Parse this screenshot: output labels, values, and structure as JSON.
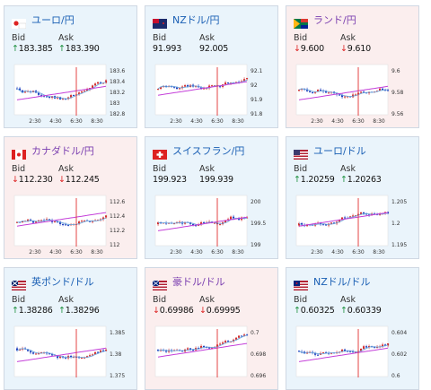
{
  "labels": {
    "bid": "Bid",
    "ask": "Ask"
  },
  "cards": [
    {
      "pair": "ユーロ/円",
      "flag": "eu-jp-flag",
      "trend": "up",
      "bid": "183.385",
      "ask": "183.390",
      "y_ticks": [
        "183.6",
        "183.4",
        "183.2",
        "183",
        "182.8"
      ],
      "x_ticks": [
        "2:30",
        "4:30",
        "6:30",
        "8:30"
      ]
    },
    {
      "pair": "NZドル/円",
      "flag": "nz-jp-flag",
      "trend": "up",
      "bid": "91.993",
      "ask": "92.005",
      "y_ticks": [
        "92.1",
        "92",
        "91.9",
        "91.8"
      ],
      "x_ticks": [
        "2:30",
        "4:30",
        "6:30",
        "8:30"
      ]
    },
    {
      "pair": "ランド/円",
      "flag": "za-jp-flag",
      "trend": "down",
      "bid": "9.600",
      "ask": "9.610",
      "y_ticks": [
        "9.6",
        "9.58",
        "9.56"
      ],
      "x_ticks": [
        "2:30",
        "4:30",
        "6:30",
        "8:30"
      ]
    },
    {
      "pair": "カナダドル/円",
      "flag": "ca-jp-flag",
      "trend": "down",
      "bid": "112.230",
      "ask": "112.245",
      "y_ticks": [
        "112.6",
        "112.4",
        "112.2",
        "112"
      ],
      "x_ticks": [
        "2:30",
        "4:30",
        "6:30",
        "8:30"
      ]
    },
    {
      "pair": "スイスフラン/円",
      "flag": "ch-jp-flag",
      "trend": "up",
      "bid": "199.923",
      "ask": "199.939",
      "y_ticks": [
        "200",
        "199.5",
        "199"
      ],
      "x_ticks": [
        "2:30",
        "4:30",
        "6:30",
        "8:30"
      ]
    },
    {
      "pair": "ユーロ/ドル",
      "flag": "eu-us-flag",
      "trend": "up",
      "bid": "1.20259",
      "ask": "1.20263",
      "y_ticks": [
        "1.205",
        "1.2",
        "1.195"
      ],
      "x_ticks": [
        "2:30",
        "4:30",
        "6:30",
        "8:30"
      ]
    },
    {
      "pair": "英ポンド/ドル",
      "flag": "gb-us-flag",
      "trend": "up",
      "bid": "1.38286",
      "ask": "1.38296",
      "y_ticks": [
        "1.385",
        "1.38",
        "1.375"
      ],
      "x_ticks": []
    },
    {
      "pair": "豪ドル/ドル",
      "flag": "au-us-flag",
      "trend": "down",
      "bid": "0.69986",
      "ask": "0.69995",
      "y_ticks": [
        "0.7",
        "0.698",
        "0.696"
      ],
      "x_ticks": []
    },
    {
      "pair": "NZドル/ドル",
      "flag": "nz-us-flag",
      "trend": "up",
      "bid": "0.60325",
      "ask": "0.60339",
      "y_ticks": [
        "0.604",
        "0.602",
        "0.6"
      ],
      "x_ticks": []
    }
  ],
  "colors": {
    "up_bg": "#eaf4fb",
    "down_bg": "#fbeeee",
    "candle_up": "#d23030",
    "candle_down": "#1f3fbf",
    "ma_short": "#6fa8dc",
    "ma_long": "#c43fd9",
    "marker": "#e03030"
  }
}
